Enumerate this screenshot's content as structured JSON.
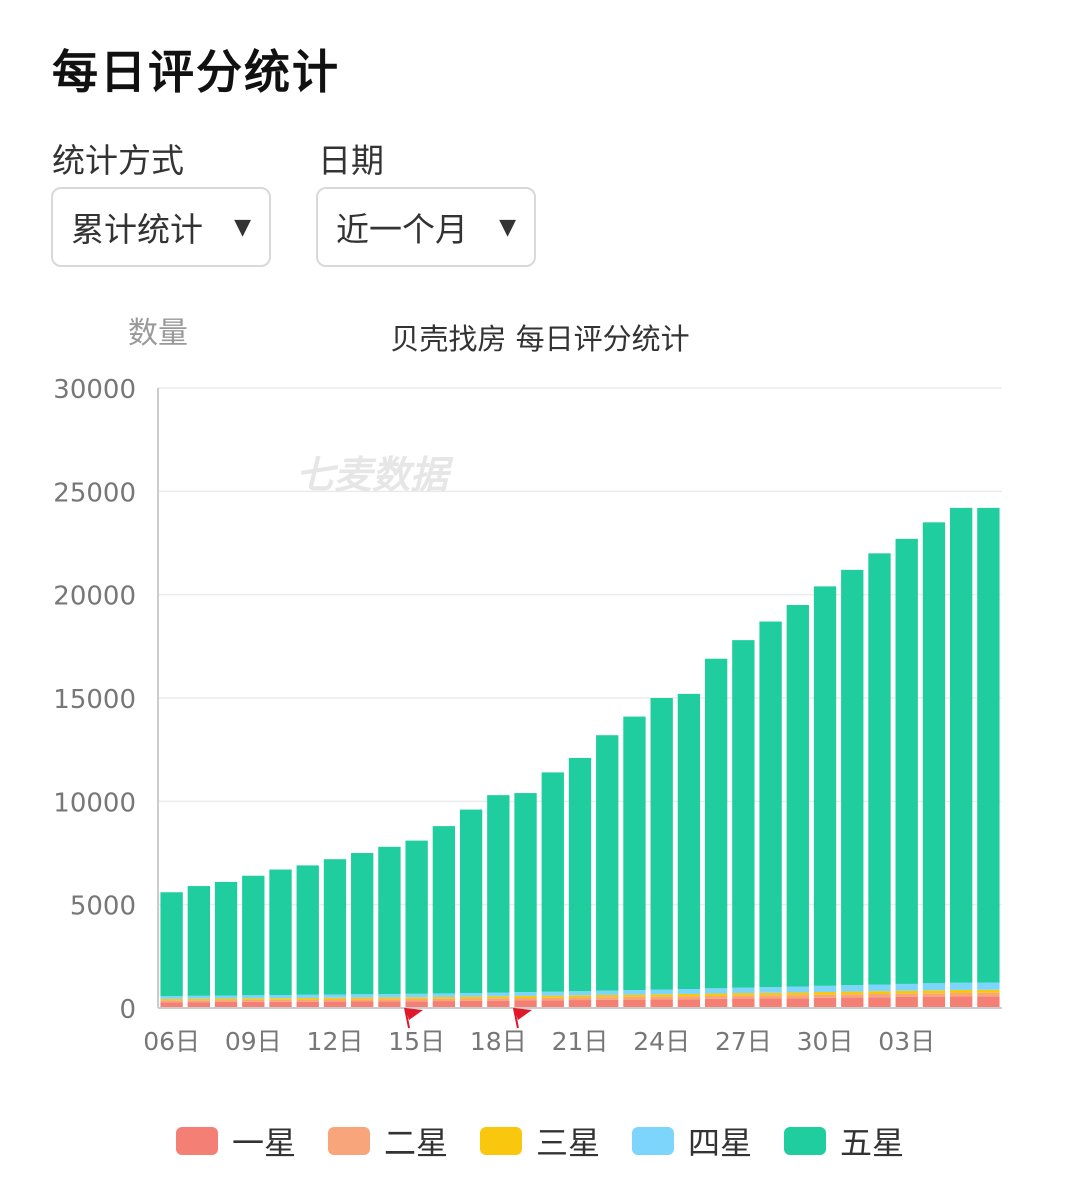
{
  "page": {
    "title": "每日评分统计"
  },
  "filters": {
    "method": {
      "label": "统计方式",
      "value": "累计统计",
      "arrow": "▼"
    },
    "date": {
      "label": "日期",
      "value": "近一个月",
      "arrow": "▼"
    }
  },
  "watermark": "七麦数据",
  "colors": {
    "one": "#f47f74",
    "two": "#f9a57c",
    "three": "#f8c70e",
    "four": "#7dd5fb",
    "five": "#1fcd9e",
    "axis": "#cccccc",
    "grid": "#ebebeb",
    "text": "#777777",
    "flag": "#e0182a"
  },
  "chart_data": {
    "type": "bar",
    "stacked": true,
    "title": "贝壳找房 每日评分统计",
    "ylabel": "数量",
    "xlabel": "",
    "ylim": [
      0,
      30000
    ],
    "yticks": [
      0,
      5000,
      10000,
      15000,
      20000,
      25000,
      30000
    ],
    "categories": [
      "06日",
      "07日",
      "08日",
      "09日",
      "10日",
      "11日",
      "12日",
      "13日",
      "14日",
      "15日",
      "16日",
      "17日",
      "18日",
      "19日",
      "20日",
      "21日",
      "22日",
      "23日",
      "24日",
      "25日",
      "26日",
      "27日",
      "28日",
      "29日",
      "30日",
      "31日",
      "01日",
      "02日",
      "03日",
      "04日",
      "05日"
    ],
    "xtick_labels": [
      "06日",
      "09日",
      "12日",
      "15日",
      "18日",
      "21日",
      "24日",
      "27日",
      "30日",
      "03日"
    ],
    "xtick_indices": [
      0,
      3,
      6,
      9,
      12,
      15,
      18,
      21,
      24,
      27
    ],
    "flag_indices": [
      9,
      13
    ],
    "series": [
      {
        "name": "一星",
        "values": [
          280,
          285,
          290,
          295,
          300,
          305,
          310,
          315,
          320,
          325,
          335,
          345,
          355,
          365,
          375,
          385,
          395,
          405,
          415,
          425,
          440,
          455,
          465,
          475,
          490,
          505,
          520,
          535,
          550,
          560,
          565
        ]
      },
      {
        "name": "二星",
        "values": [
          90,
          92,
          94,
          96,
          98,
          100,
          102,
          104,
          106,
          108,
          110,
          113,
          116,
          119,
          122,
          125,
          128,
          131,
          134,
          137,
          140,
          143,
          146,
          149,
          152,
          155,
          158,
          161,
          164,
          167,
          168
        ]
      },
      {
        "name": "三星",
        "values": [
          70,
          72,
          74,
          76,
          78,
          80,
          82,
          84,
          86,
          88,
          90,
          93,
          96,
          99,
          102,
          105,
          108,
          111,
          114,
          117,
          120,
          123,
          126,
          129,
          132,
          135,
          138,
          141,
          144,
          147,
          148
        ]
      },
      {
        "name": "四星",
        "values": [
          140,
          143,
          146,
          149,
          152,
          155,
          158,
          161,
          164,
          167,
          170,
          175,
          180,
          185,
          190,
          200,
          210,
          220,
          230,
          240,
          255,
          265,
          275,
          285,
          300,
          310,
          320,
          330,
          340,
          350,
          352
        ]
      },
      {
        "name": "五星",
        "values": [
          5020,
          5308,
          5496,
          5784,
          6072,
          6260,
          6548,
          6836,
          7124,
          7412,
          8095,
          8874,
          9553,
          9632,
          10611,
          11285,
          12359,
          13233,
          14107,
          14281,
          15945,
          16814,
          17688,
          18462,
          19326,
          20095,
          20864,
          21533,
          22302,
          22976,
          22967
        ]
      }
    ]
  },
  "legend": [
    "一星",
    "二星",
    "三星",
    "四星",
    "五星"
  ]
}
